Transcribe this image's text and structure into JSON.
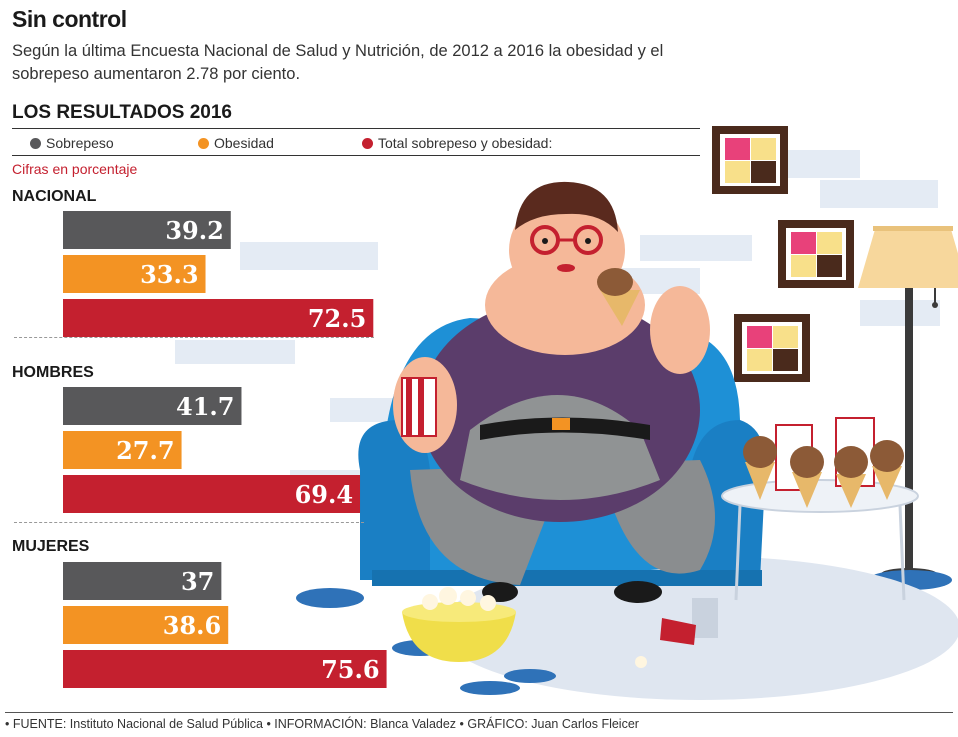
{
  "title": "Sin control",
  "subtitle": "Según la última Encuesta Nacional de Salud y Nutrición, de 2012 a 2016 la obesidad y el sobrepeso aumentaron 2.78 por ciento.",
  "section_title": "LOS RESULTADOS 2016",
  "units": "Cifras en porcentaje",
  "footer": "• FUENTE: Instituto Nacional de Salud Pública • INFORMACIÓN: Blanca Valadez • GRÁFICO: Juan Carlos Fleicer",
  "colors": {
    "sobrepeso": "#58585a",
    "obesidad": "#f39323",
    "total": "#c4202f"
  },
  "chart_data": {
    "type": "bar",
    "orientation": "horizontal",
    "categories": [
      "NACIONAL",
      "HOMBRES",
      "MUJERES"
    ],
    "series": [
      {
        "name": "Sobrepeso",
        "values": [
          39.2,
          41.7,
          37
        ]
      },
      {
        "name": "Obesidad",
        "values": [
          33.3,
          27.7,
          38.6
        ]
      },
      {
        "name": "Total sobrepeso y obesidad:",
        "values": [
          72.5,
          69.4,
          75.6
        ]
      }
    ],
    "value_labels": [
      [
        "39.2",
        "33.3",
        "72.5"
      ],
      [
        "41.7",
        "27.7",
        "69.4"
      ],
      [
        "37",
        "38.6",
        "75.6"
      ]
    ],
    "legend_position": "top",
    "grid": false
  }
}
